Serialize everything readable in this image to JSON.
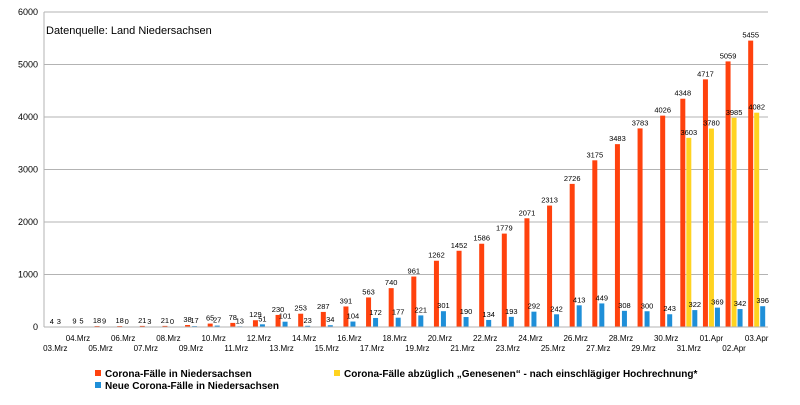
{
  "chart_data": {
    "type": "bar",
    "source_note": "Datenquelle: Land Niedersachsen",
    "ylim": [
      0,
      6000
    ],
    "yticks": [
      0,
      1000,
      2000,
      3000,
      4000,
      5000,
      6000
    ],
    "grid": "horizontal",
    "legend_position": "bottom-left",
    "categories": [
      "03.Mrz",
      "04.Mrz",
      "05.Mrz",
      "06.Mrz",
      "07.Mrz",
      "08.Mrz",
      "09.Mrz",
      "10.Mrz",
      "11.Mrz",
      "12.Mrz",
      "13.Mrz",
      "14.Mrz",
      "15.Mrz",
      "16.Mrz",
      "17.Mrz",
      "18.Mrz",
      "19.Mrz",
      "20.Mrz",
      "21.Mrz",
      "22.Mrz",
      "23.Mrz",
      "24.Mrz",
      "25.Mrz",
      "26.Mrz",
      "27.Mrz",
      "28.Mrz",
      "29.Mrz",
      "30.Mrz",
      "31.Mrz",
      "01.Apr",
      "02.Apr",
      "03.Apr"
    ],
    "series": [
      {
        "name": "Corona-Fälle in Niedersachsen",
        "color": "#ff420e",
        "values": [
          4,
          9,
          18,
          18,
          21,
          21,
          38,
          65,
          78,
          129,
          230,
          253,
          287,
          391,
          563,
          740,
          961,
          1262,
          1452,
          1586,
          1779,
          2071,
          2313,
          2726,
          3175,
          3483,
          3783,
          4026,
          4348,
          4717,
          5059,
          5455
        ]
      },
      {
        "name": "Corona-Fälle abzüglich „Genesenen“ - nach einschlägiger Hochrechnung*",
        "color": "#ffd320",
        "values": [
          null,
          null,
          null,
          null,
          null,
          null,
          null,
          null,
          null,
          null,
          null,
          null,
          null,
          null,
          null,
          null,
          null,
          null,
          null,
          null,
          null,
          null,
          null,
          null,
          null,
          null,
          null,
          null,
          3603,
          3780,
          3985,
          4082
        ]
      },
      {
        "name": "Neue Corona-Fälle in Niedersachsen",
        "color": "#1f8fd8",
        "values": [
          3,
          5,
          9,
          0,
          3,
          0,
          17,
          27,
          13,
          51,
          101,
          23,
          34,
          104,
          172,
          177,
          221,
          301,
          190,
          134,
          193,
          292,
          242,
          413,
          449,
          308,
          300,
          243,
          322,
          369,
          342,
          396
        ]
      }
    ]
  }
}
